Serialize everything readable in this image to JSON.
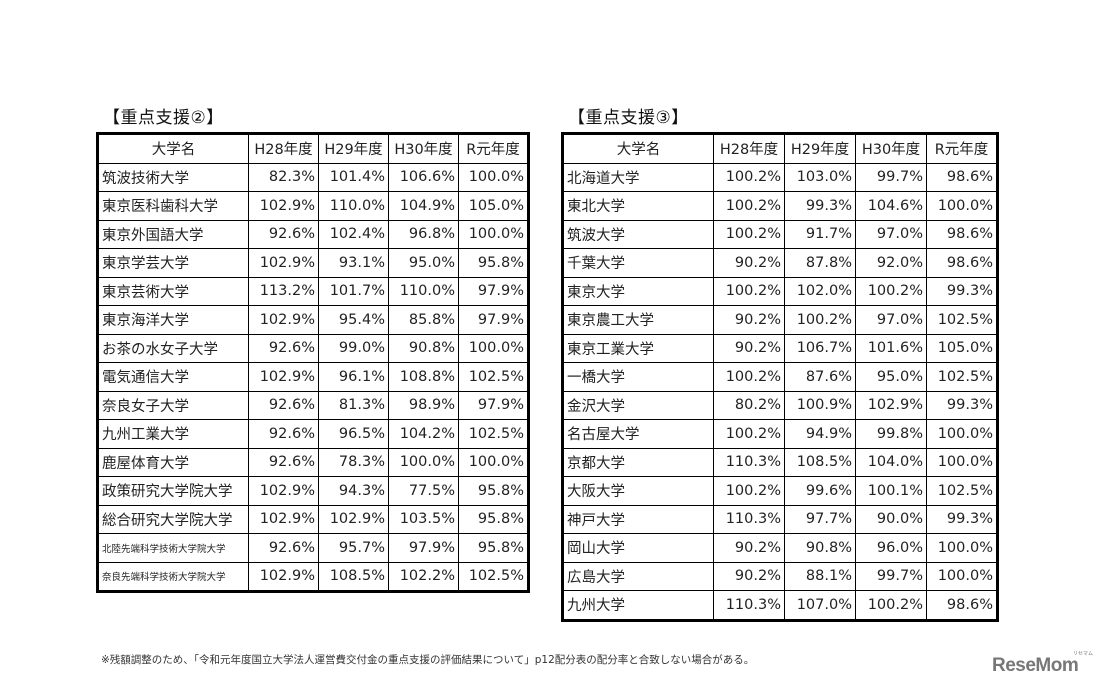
{
  "tables": [
    {
      "title": "【重点支援②】",
      "headers": [
        "大学名",
        "H28年度",
        "H29年度",
        "H30年度",
        "R元年度"
      ],
      "rows": [
        [
          "筑波技術大学",
          "82.3%",
          "101.4%",
          "106.6%",
          "100.0%"
        ],
        [
          "東京医科歯科大学",
          "102.9%",
          "110.0%",
          "104.9%",
          "105.0%"
        ],
        [
          "東京外国語大学",
          "92.6%",
          "102.4%",
          "96.8%",
          "100.0%"
        ],
        [
          "東京学芸大学",
          "102.9%",
          "93.1%",
          "95.0%",
          "95.8%"
        ],
        [
          "東京芸術大学",
          "113.2%",
          "101.7%",
          "110.0%",
          "97.9%"
        ],
        [
          "東京海洋大学",
          "102.9%",
          "95.4%",
          "85.8%",
          "97.9%"
        ],
        [
          "お茶の水女子大学",
          "92.6%",
          "99.0%",
          "90.8%",
          "100.0%"
        ],
        [
          "電気通信大学",
          "102.9%",
          "96.1%",
          "108.8%",
          "102.5%"
        ],
        [
          "奈良女子大学",
          "92.6%",
          "81.3%",
          "98.9%",
          "97.9%"
        ],
        [
          "九州工業大学",
          "92.6%",
          "96.5%",
          "104.2%",
          "102.5%"
        ],
        [
          "鹿屋体育大学",
          "92.6%",
          "78.3%",
          "100.0%",
          "100.0%"
        ],
        [
          "政策研究大学院大学",
          "102.9%",
          "94.3%",
          "77.5%",
          "95.8%"
        ],
        [
          "総合研究大学院大学",
          "102.9%",
          "102.9%",
          "103.5%",
          "95.8%"
        ],
        [
          "北陸先端科学技術大学院大学",
          "92.6%",
          "95.7%",
          "97.9%",
          "95.8%"
        ],
        [
          "奈良先端科学技術大学院大学",
          "102.9%",
          "108.5%",
          "102.2%",
          "102.5%"
        ]
      ]
    },
    {
      "title": "【重点支援③】",
      "headers": [
        "大学名",
        "H28年度",
        "H29年度",
        "H30年度",
        "R元年度"
      ],
      "rows": [
        [
          "北海道大学",
          "100.2%",
          "103.0%",
          "99.7%",
          "98.6%"
        ],
        [
          "東北大学",
          "100.2%",
          "99.3%",
          "104.6%",
          "100.0%"
        ],
        [
          "筑波大学",
          "100.2%",
          "91.7%",
          "97.0%",
          "98.6%"
        ],
        [
          "千葉大学",
          "90.2%",
          "87.8%",
          "92.0%",
          "98.6%"
        ],
        [
          "東京大学",
          "100.2%",
          "102.0%",
          "100.2%",
          "99.3%"
        ],
        [
          "東京農工大学",
          "90.2%",
          "100.2%",
          "97.0%",
          "102.5%"
        ],
        [
          "東京工業大学",
          "90.2%",
          "106.7%",
          "101.6%",
          "105.0%"
        ],
        [
          "一橋大学",
          "100.2%",
          "87.6%",
          "95.0%",
          "102.5%"
        ],
        [
          "金沢大学",
          "80.2%",
          "100.9%",
          "102.9%",
          "99.3%"
        ],
        [
          "名古屋大学",
          "100.2%",
          "94.9%",
          "99.8%",
          "100.0%"
        ],
        [
          "京都大学",
          "110.3%",
          "108.5%",
          "104.0%",
          "100.0%"
        ],
        [
          "大阪大学",
          "100.2%",
          "99.6%",
          "100.1%",
          "102.5%"
        ],
        [
          "神戸大学",
          "110.3%",
          "97.7%",
          "90.0%",
          "99.3%"
        ],
        [
          "岡山大学",
          "90.2%",
          "90.8%",
          "96.0%",
          "100.0%"
        ],
        [
          "広島大学",
          "90.2%",
          "88.1%",
          "99.7%",
          "100.0%"
        ],
        [
          "九州大学",
          "110.3%",
          "107.0%",
          "100.2%",
          "98.6%"
        ]
      ]
    }
  ],
  "footnote": "※残額調整のため、「令和元年度国立大学法人運営費交付金の重点支援の評価結果について」p12配分表の配分率と合致しない場合がある。",
  "logo": {
    "text": "ReseMom",
    "ruby": "リセマム"
  }
}
